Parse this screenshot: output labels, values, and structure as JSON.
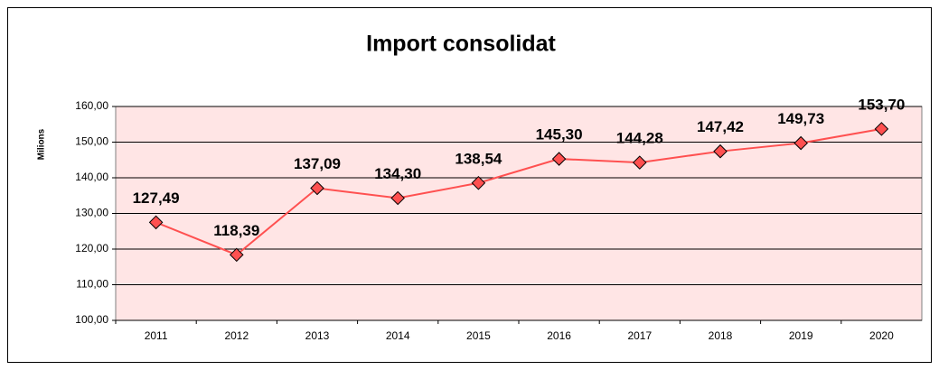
{
  "chart_data": {
    "type": "line",
    "title": "Import consolidat",
    "y_label": "Milions",
    "categories": [
      "2011",
      "2012",
      "2013",
      "2014",
      "2015",
      "2016",
      "2017",
      "2018",
      "2019",
      "2020"
    ],
    "series": [
      {
        "name": "Import consolidat",
        "color": "#ff5050",
        "values": [
          127.49,
          118.39,
          137.09,
          134.3,
          138.54,
          145.3,
          144.28,
          147.42,
          149.73,
          153.7
        ],
        "value_labels": [
          "127,49",
          "118,39",
          "137,09",
          "134,30",
          "138,54",
          "145,30",
          "144,28",
          "147,42",
          "149,73",
          "153,70"
        ]
      }
    ],
    "ylim": [
      100,
      160
    ],
    "yticks": [
      {
        "value": 100,
        "label": "100,00"
      },
      {
        "value": 110,
        "label": "110,00"
      },
      {
        "value": 120,
        "label": "120,00"
      },
      {
        "value": 130,
        "label": "130,00"
      },
      {
        "value": 140,
        "label": "140,00"
      },
      {
        "value": 150,
        "label": "150,00"
      },
      {
        "value": 160,
        "label": "160,00"
      }
    ],
    "grid": true,
    "plot_background": "#ffe5e5"
  }
}
